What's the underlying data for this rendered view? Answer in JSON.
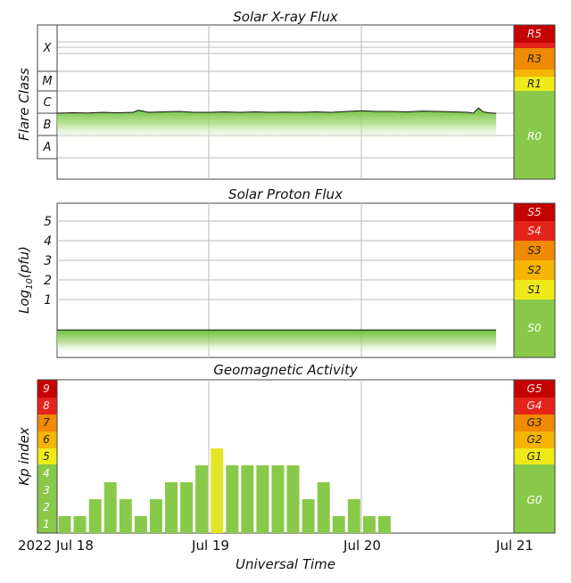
{
  "chart_data": [
    {
      "type": "area",
      "title": "Solar X-ray Flux",
      "ylabel": "Flare Class",
      "y_scale": "log",
      "y_classes": [
        "X",
        "M",
        "C",
        "B",
        "A"
      ],
      "scale_labels": [
        "R5",
        "R3",
        "R1",
        "R0"
      ],
      "series": [
        {
          "x_hours": [
            0,
            3,
            6,
            9,
            12,
            15,
            16,
            18,
            21,
            24,
            27,
            30,
            33,
            36,
            39,
            42,
            45,
            48,
            51,
            54,
            57,
            60,
            63,
            66,
            69,
            72,
            75,
            78,
            81,
            82,
            83,
            84,
            85,
            86,
            86.5
          ],
          "values": [
            1e-06,
            1.05e-06,
            1.02e-06,
            1.1e-06,
            1.05e-06,
            1.1e-06,
            1.35e-06,
            1.1e-06,
            1.15e-06,
            1.2e-06,
            1.1e-06,
            1.1e-06,
            1.15e-06,
            1.1e-06,
            1.15e-06,
            1.1e-06,
            1.12e-06,
            1.1e-06,
            1.15e-06,
            1.1e-06,
            1.2e-06,
            1.3e-06,
            1.2e-06,
            1.2e-06,
            1.15e-06,
            1.25e-06,
            1.2e-06,
            1.15e-06,
            1.1e-06,
            1e-06,
            1.7e-06,
            1.15e-06,
            1.05e-06,
            1e-06,
            1e-06
          ]
        }
      ]
    },
    {
      "type": "area",
      "title": "Solar Proton Flux",
      "ylabel": "Log10(pfu)",
      "y_ticks": [
        "5",
        "4",
        "3",
        "2",
        "1"
      ],
      "scale_labels": [
        "S5",
        "S4",
        "S3",
        "S2",
        "S1",
        "S0"
      ],
      "series": [
        {
          "x_hours": [
            0,
            86.5
          ],
          "values": [
            -0.55,
            -0.55
          ]
        }
      ]
    },
    {
      "type": "bar",
      "title": "Geomagnetic Activity",
      "ylabel": "Kp index",
      "xlabel": "Universal Time",
      "ylim": [
        0,
        9
      ],
      "y_ticks": [
        "9",
        "8",
        "7",
        "6",
        "5",
        "4",
        "3",
        "2",
        "1"
      ],
      "scale_labels": [
        "G5",
        "G4",
        "G3",
        "G2",
        "G1",
        "G0"
      ],
      "x_tick_labels": [
        "2022 Jul 18",
        "Jul 19",
        "Jul 20",
        "Jul 21"
      ],
      "values": [
        1,
        1,
        2,
        3,
        2,
        1,
        2,
        3,
        3,
        4,
        5,
        4,
        4,
        4,
        4,
        4,
        2,
        3,
        1,
        2,
        1,
        1
      ],
      "colors": {
        "normal": "#88c94a",
        "g1": "#e3e626"
      }
    }
  ]
}
